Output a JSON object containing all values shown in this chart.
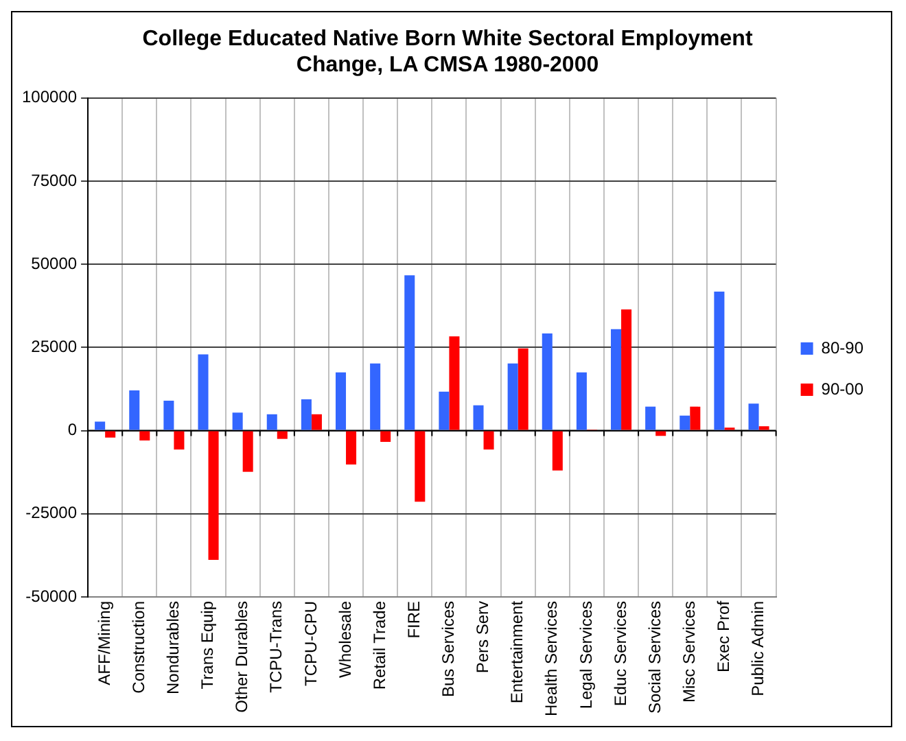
{
  "chart_data": {
    "type": "bar",
    "title": "College Educated Native Born White Sectoral Employment Change, LA CMSA 1980-2000",
    "categories": [
      "AFF/Mining",
      "Construction",
      "Nondurables",
      "Trans Equip",
      "Other Durables",
      "TCPU-Trans",
      "TCPU-CPU",
      "Wholesale",
      "Retail Trade",
      "FIRE",
      "Bus Services",
      "Pers Serv",
      "Entertainment",
      "Health Services",
      "Legal Services",
      "Educ Services",
      "Social Services",
      "Misc Services",
      "Exec Prof",
      "Public Admin"
    ],
    "series": [
      {
        "name": "80-90",
        "color": "#3366ff",
        "values": [
          2700,
          12100,
          9000,
          22900,
          5400,
          4900,
          9400,
          17500,
          20200,
          46700,
          11700,
          7600,
          20200,
          29200,
          17500,
          30500,
          7200,
          4500,
          41800,
          8100
        ]
      },
      {
        "name": "90-00",
        "color": "#ff0000",
        "values": [
          -2100,
          -3000,
          -5700,
          -38900,
          -12400,
          -2500,
          4900,
          -10200,
          -3400,
          -21400,
          28300,
          -5700,
          24700,
          -12000,
          300,
          36400,
          -1600,
          7200,
          900,
          1300
        ]
      }
    ],
    "ylim": [
      -50000,
      100000
    ],
    "yticks": [
      -50000,
      -25000,
      0,
      25000,
      50000,
      75000,
      100000
    ],
    "grid": true,
    "legend": "right"
  }
}
